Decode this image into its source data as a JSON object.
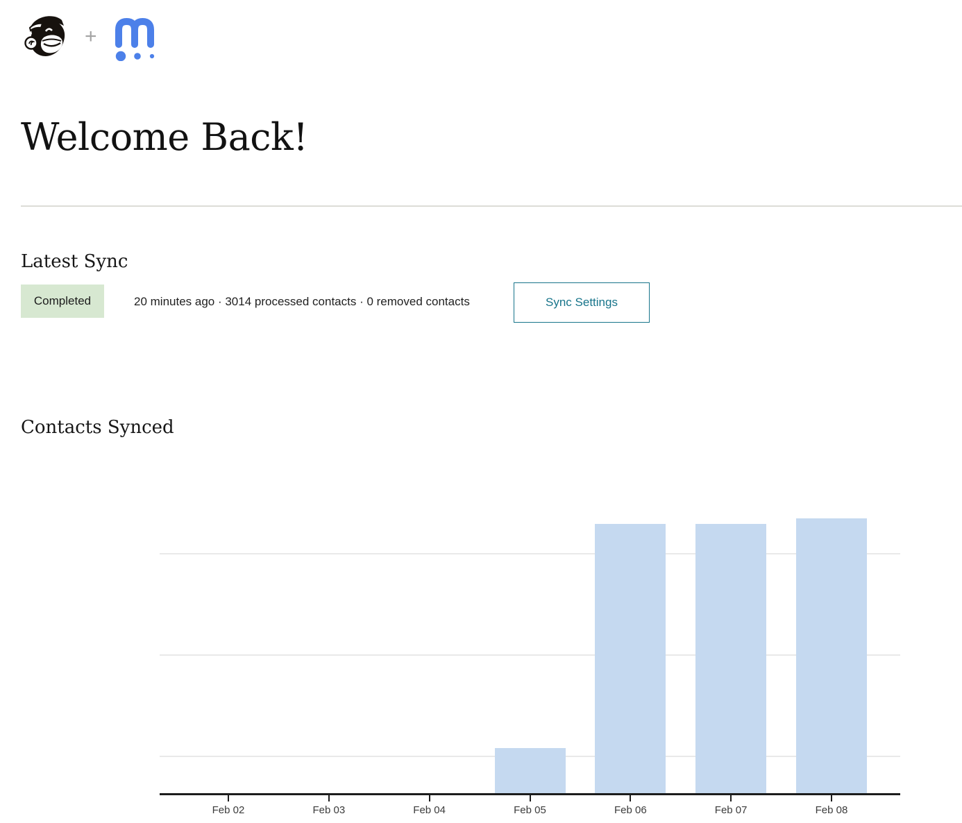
{
  "header": {
    "plus_sign": "+",
    "logos": {
      "left": "mailchimp-freddie",
      "right": "m-app"
    }
  },
  "title": "Welcome Back!",
  "latest_sync": {
    "heading": "Latest Sync",
    "badge": "Completed",
    "summary": "20 minutes ago · 3014 processed contacts · 0 removed contacts",
    "settings_button": "Sync Settings"
  },
  "contacts_synced": {
    "heading": "Contacts Synced"
  },
  "chart_data": {
    "type": "bar",
    "title": "Contacts Synced",
    "categories": [
      "Feb 02",
      "Feb 03",
      "Feb 04",
      "Feb 05",
      "Feb 06",
      "Feb 07",
      "Feb 08"
    ],
    "values": [
      0,
      0,
      0,
      164,
      980,
      982,
      1000
    ],
    "value_note": "y-axis has no visible labels; values are relative estimates where tallest bar = 1000",
    "ylim": [
      0,
      1120
    ],
    "gridline_values": [
      131,
      500,
      869
    ],
    "grid": true,
    "legend": false,
    "bar_color": "#c5d9f0",
    "axis_color": "#1c1c1c",
    "gridline_color": "#e9e9e9",
    "xlabel_color": "#3b3b3b"
  },
  "colors": {
    "accent_teal": "#17748a",
    "badge_background": "#d7e8d1",
    "badge_text": "#1c1c1c",
    "logo_blue": "#4c80e9",
    "divider": "#dcdcd7"
  }
}
